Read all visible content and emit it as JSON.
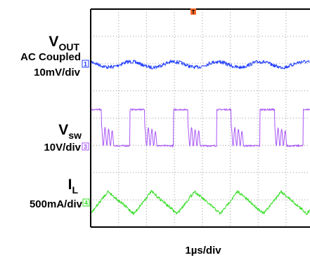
{
  "chart_data": {
    "type": "line",
    "xlabel": "1µs/div",
    "grid": true,
    "trigger_marker": "T",
    "channels": [
      {
        "label": "V",
        "label_sub": "OUT",
        "coupling": "AC Coupled",
        "scale": "10mV/div",
        "marker": "1",
        "color": "#1f3cff",
        "waveform": "sine ripple",
        "period_div": 1.55,
        "amplitude_div": 0.1
      },
      {
        "label": "V",
        "label_sub": "SW",
        "scale": "10V/div",
        "marker": "3",
        "color": "#a855f7",
        "waveform": "switching pulses with ringing",
        "period_div": 1.55,
        "high_div": 1.3,
        "low_div": 0.0
      },
      {
        "label": "I",
        "label_sub": "L",
        "scale": "500mA/div",
        "marker": "4",
        "color": "#33dd22",
        "waveform": "triangle",
        "period_div": 1.55,
        "amplitude_div": 0.4
      }
    ]
  }
}
